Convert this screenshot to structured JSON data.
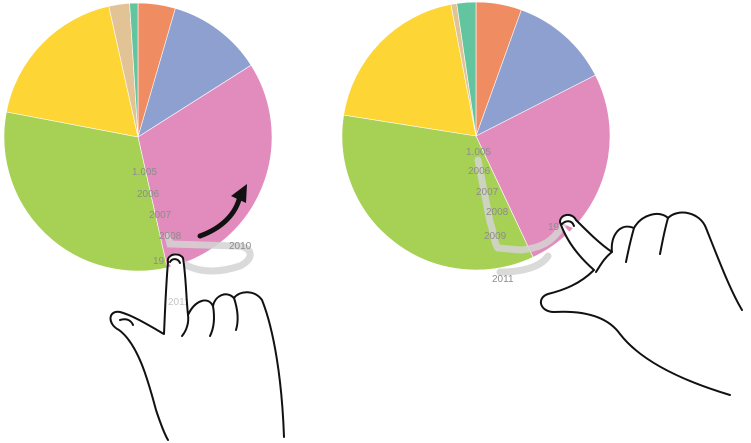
{
  "colors": {
    "slices": [
      "#f08c62",
      "#8ea0cf",
      "#e18cbd",
      "#a7d155",
      "#fdd535",
      "#e2c395",
      "#62c5a0"
    ],
    "background": "#ffffff",
    "arrow": "#111111",
    "hand_outline": "#111111",
    "trail": "#d0d0d0",
    "year_text": "#8c8c8c"
  },
  "chart_data": [
    {
      "type": "pie",
      "legend": "none",
      "start_angle_deg": 0,
      "values": [
        4.5,
        11.5,
        30.5,
        31.5,
        18.5,
        2.5,
        1.0
      ],
      "year_labels": [
        "1.005",
        "2006",
        "2007",
        "2008",
        "2010",
        "19",
        "2011"
      ],
      "icons": [
        "curved-arrow-icon",
        "pointing-hand-icon"
      ]
    },
    {
      "type": "pie",
      "legend": "none",
      "start_angle_deg": 0,
      "values": [
        5.5,
        12.0,
        25.5,
        34.5,
        19.5,
        0.7,
        2.3
      ],
      "year_labels": [
        "1.005",
        "2006",
        "2007",
        "2008",
        "2009",
        "19",
        "2011"
      ],
      "icons": [
        "pointing-hand-icon"
      ]
    }
  ]
}
